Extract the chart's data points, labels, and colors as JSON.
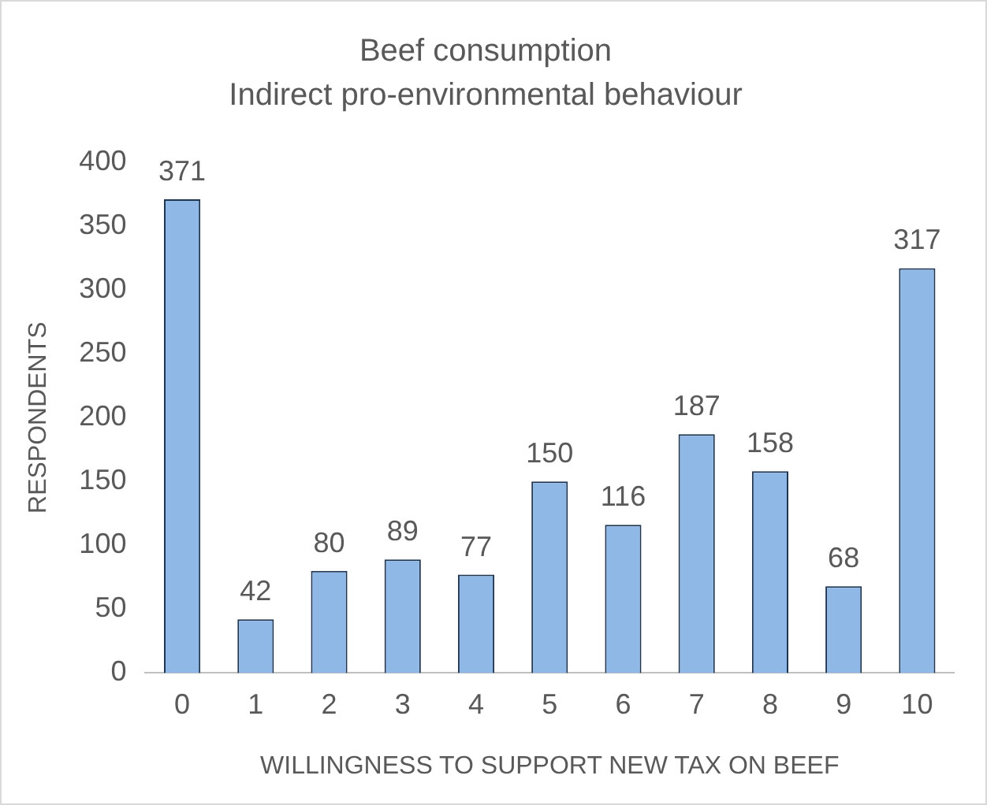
{
  "chart_data": {
    "type": "bar",
    "title": "Beef consumption",
    "subtitle": "Indirect pro-environmental behaviour",
    "xlabel": "WILLINGNESS TO SUPPORT NEW TAX ON BEEF",
    "ylabel": "RESPONDENTS",
    "categories": [
      "0",
      "1",
      "2",
      "3",
      "4",
      "5",
      "6",
      "7",
      "8",
      "9",
      "10"
    ],
    "values": [
      371,
      42,
      80,
      89,
      77,
      150,
      116,
      187,
      158,
      68,
      317
    ],
    "color": "#8fb8e6",
    "ylim": [
      0,
      400
    ],
    "yticks": [
      0,
      50,
      100,
      150,
      200,
      250,
      300,
      350,
      400
    ],
    "grid": false,
    "legend": false,
    "data_labels": true
  }
}
